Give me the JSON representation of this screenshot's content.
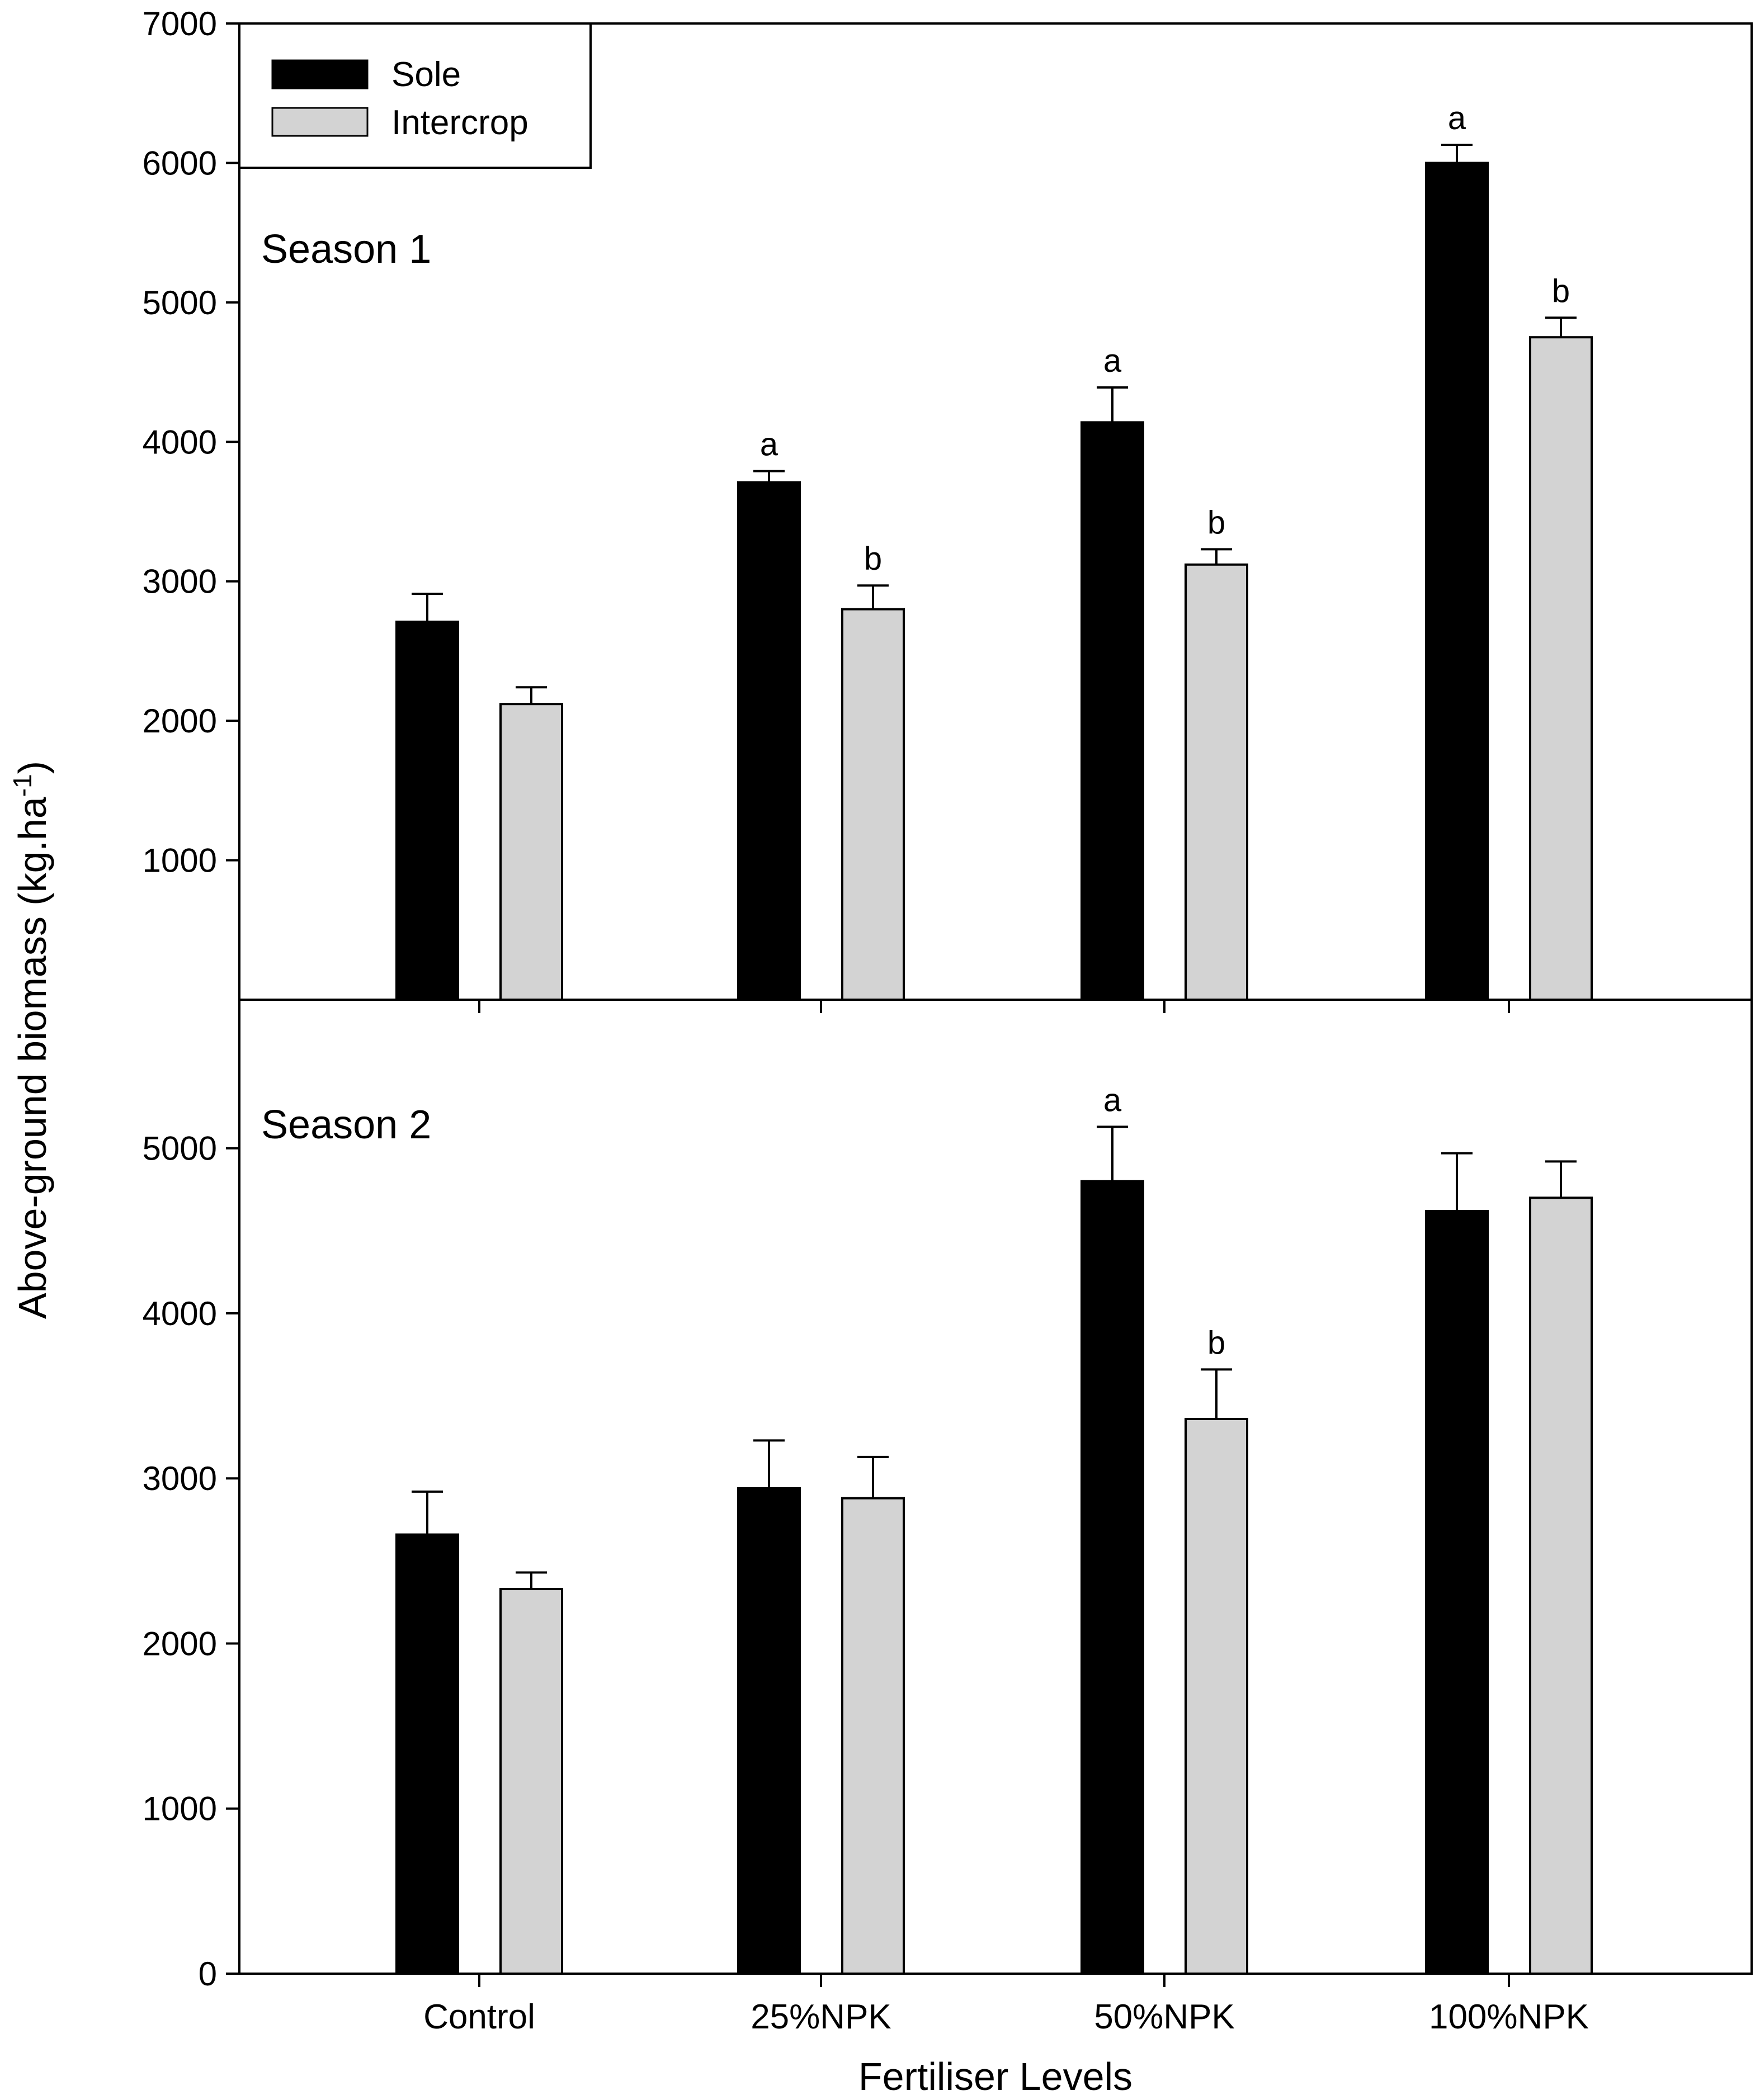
{
  "chart_data": {
    "type": "bar",
    "ylabel": "Above-ground biomass (kg.ha",
    "ylabel_sup": "-1",
    "ylabel_close": ")",
    "xlabel": "Fertiliser Levels",
    "categories": [
      "Control",
      "25%NPK",
      "50%NPK",
      "100%NPK"
    ],
    "legend": [
      {
        "name": "Sole",
        "color": "#000000"
      },
      {
        "name": "Intercrop",
        "color": "#d3d3d3"
      }
    ],
    "panels": [
      {
        "title": "Season 1",
        "ylim": [
          0,
          7000
        ],
        "yticks": [
          1000,
          2000,
          3000,
          4000,
          5000,
          6000,
          7000
        ],
        "series": [
          {
            "name": "Sole",
            "values": [
              2710,
              3710,
              4140,
              6000
            ],
            "errors": [
              200,
              80,
              250,
              130
            ],
            "letters": [
              "",
              "a",
              "a",
              "a"
            ]
          },
          {
            "name": "Intercrop",
            "values": [
              2120,
              2800,
              3120,
              4750
            ],
            "errors": [
              120,
              170,
              110,
              140
            ],
            "letters": [
              "",
              "b",
              "b",
              "b"
            ]
          }
        ]
      },
      {
        "title": "Season 2",
        "ylim": [
          0,
          5900
        ],
        "yticks": [
          0,
          1000,
          2000,
          3000,
          4000,
          5000
        ],
        "series": [
          {
            "name": "Sole",
            "values": [
              2660,
              2940,
              4800,
              4620
            ],
            "errors": [
              260,
              290,
              330,
              350
            ],
            "letters": [
              "",
              "",
              "a",
              ""
            ]
          },
          {
            "name": "Intercrop",
            "values": [
              2330,
              2880,
              3360,
              4700
            ],
            "errors": [
              100,
              250,
              300,
              220
            ],
            "letters": [
              "",
              "",
              "b",
              ""
            ]
          }
        ]
      }
    ]
  }
}
